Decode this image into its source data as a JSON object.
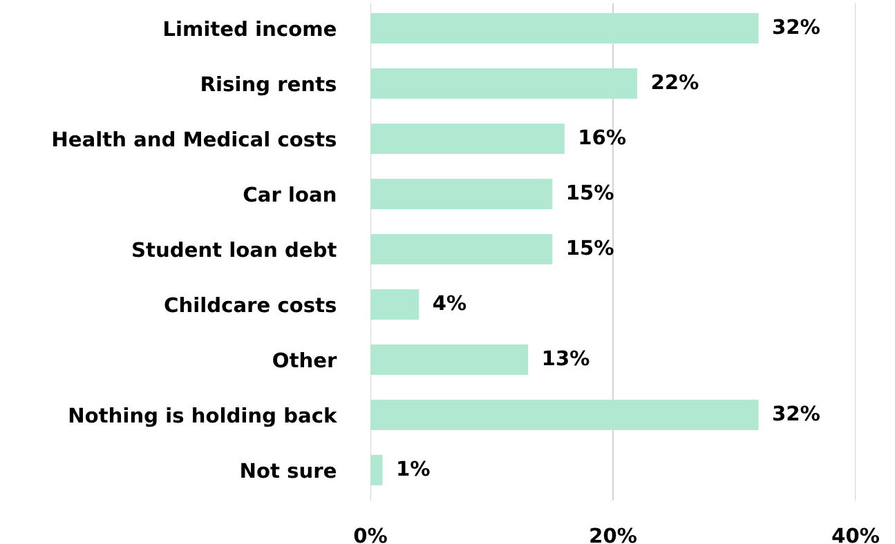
{
  "chart_data": {
    "type": "bar",
    "orientation": "horizontal",
    "categories": [
      "Limited income",
      "Rising rents",
      "Health and Medical costs",
      "Car loan",
      "Student loan debt",
      "Childcare costs",
      "Other",
      "Nothing is holding back",
      "Not sure"
    ],
    "values": [
      32,
      22,
      16,
      15,
      15,
      4,
      13,
      32,
      1
    ],
    "value_labels": [
      "32%",
      "22%",
      "16%",
      "15%",
      "15%",
      "4%",
      "13%",
      "32%",
      "1%"
    ],
    "color": "#b0e8d1",
    "xlim": [
      0,
      40
    ],
    "xticks": [
      {
        "value": 0,
        "label": "0%"
      },
      {
        "value": 20,
        "label": "20%"
      },
      {
        "value": 40,
        "label": "40%"
      }
    ],
    "grid": "x",
    "legend": false
  }
}
